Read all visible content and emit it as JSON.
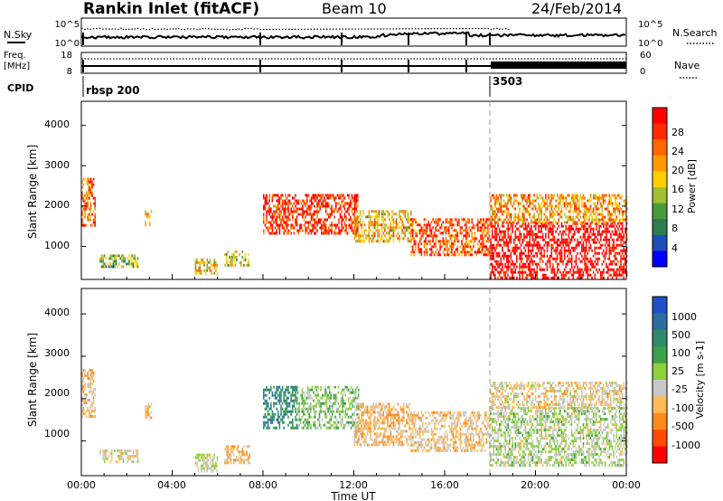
{
  "header": {
    "station": "Rankin Inlet (fitACF)",
    "beam": "Beam 10",
    "date": "24/Feb/2014"
  },
  "top_panels": {
    "nsky_label": "N.Sky",
    "nsearch_label": "N.Search",
    "nsky_ticks": [
      "10^5",
      "10^0"
    ],
    "nsearch_ticks": [
      "10^5",
      "10^0"
    ],
    "freq_label_1": "Freq.",
    "freq_label_2": "[MHz]",
    "freq_ticks": [
      "18",
      "8"
    ],
    "nave_label": "Nave",
    "nave_ticks": [
      "60",
      "0"
    ],
    "cpid_label": "CPID",
    "cpid_segments": [
      {
        "name": "rbsp 200",
        "start_hour": 0.0
      },
      {
        "name": "3503",
        "start_hour": 18.0
      }
    ]
  },
  "colors": {
    "power_scale": [
      "#0000ff",
      "#1c4fb8",
      "#2e7d4f",
      "#4a9a3a",
      "#a0c030",
      "#ffd000",
      "#ff9900",
      "#ff6600",
      "#ff2a00",
      "#ff0000"
    ],
    "velocity_scale": [
      "#2050c8",
      "#2a6ea0",
      "#2e8a6a",
      "#3fa04a",
      "#8cd040",
      "#c8c8c8",
      "#ffbb55",
      "#ff8a1a",
      "#ff4a00",
      "#ff0000"
    ]
  },
  "chart_data": [
    {
      "type": "heatmap",
      "title": "Power",
      "xlabel": "Time UT",
      "ylabel": "Slant Range [km]",
      "xlim": [
        0,
        24
      ],
      "ylim": [
        180,
        4600
      ],
      "x_ticks": [
        "00:00",
        "04:00",
        "08:00",
        "12:00",
        "16:00",
        "20:00",
        "00:00"
      ],
      "y_ticks": [
        "1000",
        "2000",
        "3000",
        "4000"
      ],
      "colorbar": {
        "label": "Power [dB]",
        "ticks": [
          "4",
          "8",
          "12",
          "16",
          "20",
          "24",
          "28"
        ],
        "range": [
          0,
          30
        ]
      },
      "echo_regions": [
        {
          "t0": 0.0,
          "t1": 0.6,
          "r0": 1550,
          "r1": 2700,
          "value": 22
        },
        {
          "t0": 0.8,
          "t1": 2.5,
          "r0": 500,
          "r1": 800,
          "value": 12
        },
        {
          "t0": 2.8,
          "t1": 3.1,
          "r0": 1550,
          "r1": 1900,
          "value": 18
        },
        {
          "t0": 5.0,
          "t1": 6.0,
          "r0": 300,
          "r1": 700,
          "value": 16
        },
        {
          "t0": 6.3,
          "t1": 7.4,
          "r0": 500,
          "r1": 900,
          "value": 14
        },
        {
          "t0": 8.0,
          "t1": 12.2,
          "r0": 1300,
          "r1": 2300,
          "value": 26
        },
        {
          "t0": 12.0,
          "t1": 14.5,
          "r0": 1100,
          "r1": 1900,
          "value": 18
        },
        {
          "t0": 14.5,
          "t1": 18.0,
          "r0": 800,
          "r1": 1700,
          "value": 24
        },
        {
          "t0": 18.0,
          "t1": 24.0,
          "r0": 250,
          "r1": 1600,
          "value": 30
        },
        {
          "t0": 18.0,
          "t1": 24.0,
          "r0": 1600,
          "r1": 2300,
          "value": 20
        }
      ]
    },
    {
      "type": "heatmap",
      "title": "Velocity",
      "xlabel": "Time UT",
      "ylabel": "Slant Range [km]",
      "xlim": [
        0,
        24
      ],
      "ylim": [
        180,
        4600
      ],
      "x_ticks": [
        "00:00",
        "04:00",
        "08:00",
        "12:00",
        "16:00",
        "20:00",
        "00:00"
      ],
      "y_ticks": [
        "1000",
        "2000",
        "3000",
        "4000"
      ],
      "colorbar": {
        "label": "Velocity [m s-1]",
        "ticks": [
          "1000",
          "500",
          "100",
          "25",
          "-25",
          "-100",
          "-500",
          "-1000"
        ],
        "range": [
          -1000,
          1000
        ]
      },
      "echo_regions": [
        {
          "t0": 0.0,
          "t1": 0.6,
          "r0": 1550,
          "r1": 2700,
          "value": -300
        },
        {
          "t0": 0.8,
          "t1": 2.5,
          "r0": 500,
          "r1": 800,
          "value": -150
        },
        {
          "t0": 2.8,
          "t1": 3.1,
          "r0": 1550,
          "r1": 1900,
          "value": -200
        },
        {
          "t0": 5.0,
          "t1": 6.0,
          "r0": 300,
          "r1": 700,
          "value": -50
        },
        {
          "t0": 6.3,
          "t1": 7.4,
          "r0": 500,
          "r1": 900,
          "value": -300
        },
        {
          "t0": 8.0,
          "t1": 9.5,
          "r0": 1300,
          "r1": 2300,
          "value": 500
        },
        {
          "t0": 9.5,
          "t1": 12.2,
          "r0": 1300,
          "r1": 2300,
          "value": 150
        },
        {
          "t0": 12.0,
          "t1": 14.5,
          "r0": 900,
          "r1": 1900,
          "value": -300
        },
        {
          "t0": 14.5,
          "t1": 18.0,
          "r0": 800,
          "r1": 1700,
          "value": -250
        },
        {
          "t0": 18.0,
          "t1": 24.0,
          "r0": 400,
          "r1": 1800,
          "value": 0
        },
        {
          "t0": 18.0,
          "t1": 24.0,
          "r0": 1800,
          "r1": 2400,
          "value": -200
        }
      ]
    }
  ]
}
